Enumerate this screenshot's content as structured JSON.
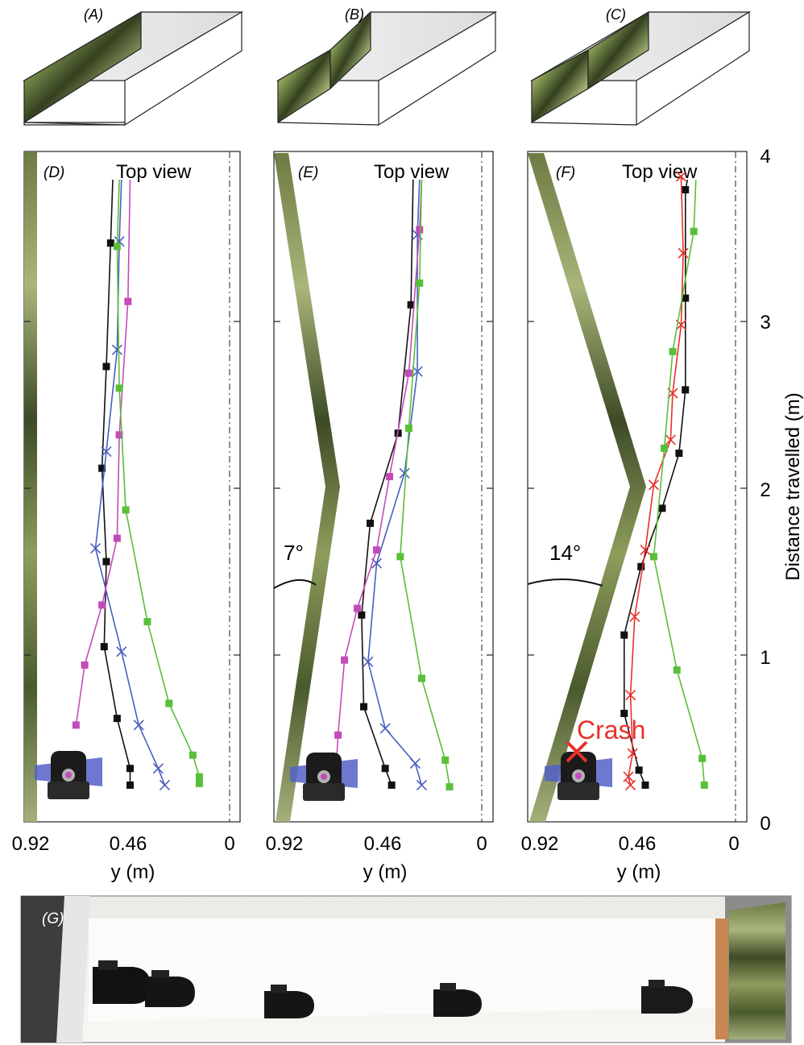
{
  "panel_labels": {
    "A": "(A)",
    "B": "(B)",
    "C": "(C)",
    "D": "(D)",
    "E": "(E)",
    "F": "(F)",
    "G": "(G)"
  },
  "top_view_label": "Top view",
  "angle_labels": {
    "E": "7°",
    "F": "14°"
  },
  "crash_label": "Crash",
  "colors": {
    "black": "#111111",
    "blue": "#4a5fbd",
    "magenta": "#c34bb9",
    "green": "#59bf3a",
    "red": "#e8302a",
    "cone": "#5560c8",
    "wall": "#3f4a2c"
  },
  "chart_data": [
    {
      "panel": "D",
      "type": "line",
      "xlabel": "y (m)",
      "x_ticks": [
        "0.92",
        "0.46",
        "0"
      ],
      "xlim": [
        0.92,
        0
      ],
      "ylim": [
        0,
        4
      ],
      "wall": "straight",
      "series": [
        {
          "color": "black",
          "marker": "square",
          "points": [
            [
              0.46,
              0.22
            ],
            [
              0.46,
              0.32
            ],
            [
              0.52,
              0.62
            ],
            [
              0.58,
              1.05
            ],
            [
              0.57,
              1.56
            ],
            [
              0.59,
              2.12
            ],
            [
              0.57,
              2.73
            ],
            [
              0.55,
              3.47
            ]
          ]
        },
        {
          "color": "blue",
          "marker": "x",
          "points": [
            [
              0.3,
              0.22
            ],
            [
              0.33,
              0.32
            ],
            [
              0.42,
              0.58
            ],
            [
              0.5,
              1.02
            ],
            [
              0.62,
              1.64
            ],
            [
              0.57,
              2.22
            ],
            [
              0.52,
              2.83
            ],
            [
              0.51,
              3.48
            ]
          ]
        },
        {
          "color": "magenta",
          "marker": "square",
          "points": [
            [
              0.71,
              0.58
            ],
            [
              0.67,
              0.94
            ],
            [
              0.59,
              1.3
            ],
            [
              0.52,
              1.7
            ],
            [
              0.51,
              2.32
            ],
            [
              0.47,
              3.12
            ]
          ]
        },
        {
          "color": "green",
          "marker": "square",
          "points": [
            [
              0.14,
              0.23
            ],
            [
              0.14,
              0.27
            ],
            [
              0.17,
              0.4
            ],
            [
              0.28,
              0.71
            ],
            [
              0.38,
              1.2
            ],
            [
              0.48,
              1.87
            ],
            [
              0.51,
              2.6
            ],
            [
              0.52,
              3.45
            ]
          ]
        }
      ]
    },
    {
      "panel": "E",
      "type": "line",
      "xlabel": "y (m)",
      "x_ticks": [
        "0.92",
        "0.46",
        "0"
      ],
      "xlim": [
        0.92,
        0
      ],
      "ylim": [
        0,
        4
      ],
      "wall": "angled 7° (apex at 2 m)",
      "series": [
        {
          "color": "black",
          "marker": "square",
          "points": [
            [
              0.42,
              0.22
            ],
            [
              0.45,
              0.32
            ],
            [
              0.55,
              0.69
            ],
            [
              0.56,
              1.24
            ],
            [
              0.52,
              1.79
            ],
            [
              0.39,
              2.33
            ],
            [
              0.33,
              3.1
            ]
          ]
        },
        {
          "color": "blue",
          "marker": "x",
          "points": [
            [
              0.28,
              0.22
            ],
            [
              0.31,
              0.35
            ],
            [
              0.45,
              0.56
            ],
            [
              0.53,
              0.96
            ],
            [
              0.49,
              1.55
            ],
            [
              0.36,
              2.09
            ],
            [
              0.3,
              2.7
            ],
            [
              0.3,
              3.52
            ]
          ]
        },
        {
          "color": "magenta",
          "marker": "square",
          "points": [
            [
              0.68,
              0.3
            ],
            [
              0.67,
              0.52
            ],
            [
              0.64,
              0.97
            ],
            [
              0.58,
              1.28
            ],
            [
              0.49,
              1.63
            ],
            [
              0.43,
              2.07
            ],
            [
              0.34,
              2.69
            ],
            [
              0.29,
              3.55
            ]
          ]
        },
        {
          "color": "green",
          "marker": "square",
          "points": [
            [
              0.15,
              0.21
            ],
            [
              0.17,
              0.37
            ],
            [
              0.28,
              0.86
            ],
            [
              0.38,
              1.59
            ],
            [
              0.34,
              2.36
            ],
            [
              0.29,
              3.23
            ]
          ]
        }
      ]
    },
    {
      "panel": "F",
      "type": "line",
      "xlabel": "y (m)",
      "x_ticks": [
        "0.92",
        "0.46",
        "0"
      ],
      "xlim": [
        0.92,
        0
      ],
      "ylim": [
        0,
        4
      ],
      "y_ticks": [
        "0",
        "1",
        "2",
        "3",
        "4"
      ],
      "ylabel": "Distance travelled (m)",
      "wall": "angled 14° (apex at 2 m)",
      "series": [
        {
          "color": "black",
          "marker": "square",
          "points": [
            [
              0.42,
              0.22
            ],
            [
              0.45,
              0.31
            ],
            [
              0.52,
              0.65
            ],
            [
              0.52,
              1.12
            ],
            [
              0.44,
              1.53
            ],
            [
              0.34,
              1.88
            ],
            [
              0.26,
              2.21
            ],
            [
              0.23,
              2.59
            ],
            [
              0.23,
              3.14
            ],
            [
              0.23,
              3.79
            ]
          ]
        },
        {
          "color": "red",
          "marker": "x",
          "points": [
            [
              0.49,
              0.22
            ],
            [
              0.5,
              0.27
            ],
            [
              0.48,
              0.41
            ],
            [
              0.49,
              0.76
            ],
            [
              0.47,
              1.23
            ],
            [
              0.42,
              1.63
            ],
            [
              0.38,
              2.02
            ],
            [
              0.3,
              2.29
            ],
            [
              0.29,
              2.57
            ],
            [
              0.25,
              2.98
            ],
            [
              0.24,
              3.41
            ],
            [
              0.25,
              3.87
            ]
          ]
        },
        {
          "color": "green",
          "marker": "square",
          "points": [
            [
              0.14,
              0.22
            ],
            [
              0.15,
              0.38
            ],
            [
              0.27,
              0.91
            ],
            [
              0.38,
              1.59
            ],
            [
              0.33,
              2.24
            ],
            [
              0.29,
              2.82
            ],
            [
              0.19,
              3.54
            ]
          ]
        }
      ]
    }
  ]
}
